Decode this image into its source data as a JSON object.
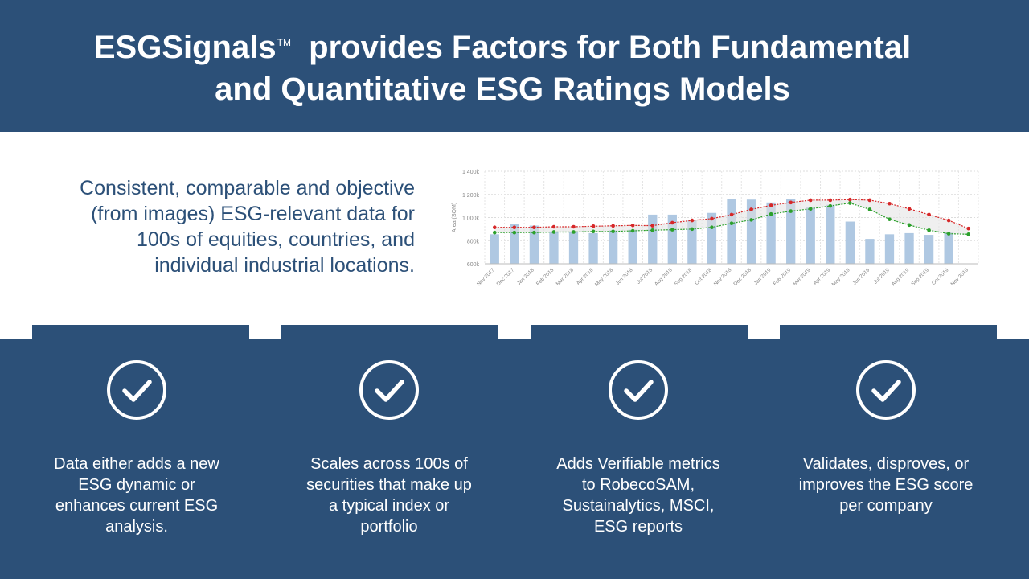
{
  "title": {
    "line1_start": "ESGSignals",
    "trademark": "TM",
    "line1_end": "provides Factors for Both Fundamental",
    "line2": "and Quantitative ESG Ratings Models"
  },
  "lead": {
    "line1": "Consistent, comparable and objective",
    "line2": "(from images) ESG-relevant data for",
    "line3": "100s of equities, countries, and",
    "line4": "individual industrial locations."
  },
  "colors": {
    "navy": "#2c5078",
    "bar": "#afc8e2",
    "upper_line": "#d62728",
    "lower_line": "#2ca02c",
    "band_fill": "#e2e2e2"
  },
  "chart_data": {
    "type": "bar",
    "categories": [
      "Nov 2017",
      "Dec 2017",
      "Jan 2018",
      "Feb 2018",
      "Mar 2018",
      "Apr 2018",
      "May 2018",
      "Jun 2018",
      "Jul 2018",
      "Aug 2018",
      "Sep 2018",
      "Oct 2018",
      "Nov 2018",
      "Dec 2018",
      "Jan 2019",
      "Feb 2019",
      "Mar 2019",
      "Apr 2019",
      "May 2019",
      "Jun 2019",
      "Jul 2019",
      "Aug 2019",
      "Sep 2019",
      "Oct 2019",
      "Nov 2019"
    ],
    "ylabel": "Area (SQM)",
    "ylim": [
      600,
      1400
    ],
    "yticks": [
      "600k",
      "800k",
      "1 000k",
      "1 200k",
      "1 400k"
    ],
    "grid": true,
    "series": [
      {
        "type": "bar",
        "values": [
          855,
          945,
          930,
          880,
          880,
          865,
          890,
          895,
          1025,
          1025,
          975,
          1040,
          1160,
          1155,
          1130,
          1160,
          1090,
          1110,
          965,
          815,
          855,
          865,
          850,
          870,
          null
        ]
      },
      {
        "type": "line",
        "values": [
          915,
          915,
          915,
          920,
          920,
          925,
          928,
          932,
          930,
          955,
          975,
          990,
          1025,
          1070,
          1105,
          1130,
          1150,
          1150,
          1155,
          1150,
          1120,
          1075,
          1025,
          975,
          905
        ]
      },
      {
        "type": "line",
        "values": [
          870,
          870,
          870,
          875,
          875,
          880,
          880,
          885,
          890,
          895,
          900,
          915,
          950,
          980,
          1030,
          1055,
          1075,
          1100,
          1125,
          1070,
          985,
          935,
          890,
          860,
          855
        ]
      }
    ]
  },
  "cards": [
    {
      "icon": "check-circle-icon",
      "text": [
        "Data either adds a new",
        "ESG dynamic or",
        "enhances current ESG",
        "analysis."
      ]
    },
    {
      "icon": "check-circle-icon",
      "text": [
        "Scales across 100s of",
        "securities that make up",
        "a typical index or",
        "portfolio"
      ]
    },
    {
      "icon": "check-circle-icon",
      "text": [
        "Adds Verifiable metrics",
        "to  RobecoSAM,",
        "Sustainalytics, MSCI,",
        "ESG reports"
      ]
    },
    {
      "icon": "check-circle-icon",
      "text": [
        "Validates, disproves, or",
        "improves the ESG score",
        "per company"
      ]
    }
  ]
}
